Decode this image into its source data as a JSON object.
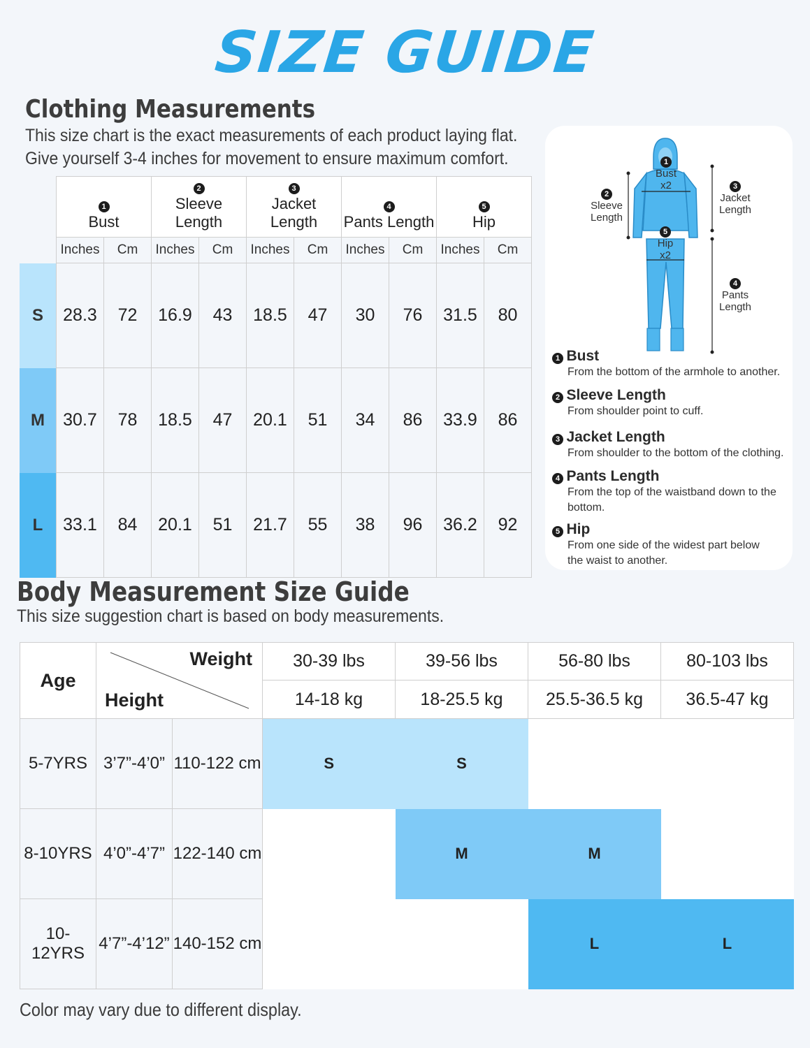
{
  "title": "SIZE GUIDE",
  "clothing": {
    "title": "Clothing Measurements",
    "desc1": "This size chart is the exact measurements of each product laying flat.",
    "desc2": "Give yourself 3-4 inches for movement to ensure maximum comfort.",
    "columns": [
      {
        "num": "1",
        "label": "Bust"
      },
      {
        "num": "2",
        "label": "Sleeve Length"
      },
      {
        "num": "3",
        "label": "Jacket Length"
      },
      {
        "num": "4",
        "label": "Pants Length"
      },
      {
        "num": "5",
        "label": "Hip"
      }
    ],
    "unit_in": "Inches",
    "unit_cm": "Cm",
    "rows": [
      {
        "size": "S",
        "values": [
          "28.3",
          "72",
          "16.9",
          "43",
          "18.5",
          "47",
          "30",
          "76",
          "31.5",
          "80"
        ]
      },
      {
        "size": "M",
        "values": [
          "30.7",
          "78",
          "18.5",
          "47",
          "20.1",
          "51",
          "34",
          "86",
          "33.9",
          "86"
        ]
      },
      {
        "size": "L",
        "values": [
          "33.1",
          "84",
          "20.1",
          "51",
          "21.7",
          "55",
          "38",
          "96",
          "36.2",
          "92"
        ]
      }
    ],
    "size_colors": [
      "#b9e4fc",
      "#7fcaf7",
      "#4fb9f2"
    ]
  },
  "diagram": {
    "bust_label": "Bust",
    "x2": "x2",
    "hip_label": "Hip",
    "sleeve_label": "Sleeve",
    "length_word": "Length",
    "jacket_label": "Jacket",
    "pants_label": "Pants",
    "figure_color": "#4fb6ee",
    "definitions": [
      {
        "num": "1",
        "title": "Bust",
        "desc": "From the bottom of the armhole to another."
      },
      {
        "num": "2",
        "title": "Sleeve Length",
        "desc": "From shoulder point to cuff."
      },
      {
        "num": "3",
        "title": "Jacket Length",
        "desc": "From shoulder to the bottom of the clothing."
      },
      {
        "num": "4",
        "title": "Pants Length",
        "desc": "From the top of the waistband down to the bottom."
      },
      {
        "num": "5",
        "title": "Hip",
        "desc": "From one side of the widest part below the waist to another."
      }
    ]
  },
  "body": {
    "title": "Body Measurement Size Guide",
    "desc": "This size suggestion chart is based on body measurements.",
    "age_label": "Age",
    "weight_label": "Weight",
    "height_label": "Height",
    "weights_lbs": [
      "30-39 lbs",
      "39-56 lbs",
      "56-80 lbs",
      "80-103 lbs"
    ],
    "weights_kg": [
      "14-18 kg",
      "18-25.5 kg",
      "25.5-36.5 kg",
      "36.5-47 kg"
    ],
    "rows": [
      {
        "age": "5-7YRS",
        "height_ft": "3’7”-4’0”",
        "height_cm": "110-122 cm",
        "cells": [
          "S",
          "S",
          "",
          ""
        ]
      },
      {
        "age": "8-10YRS",
        "height_ft": "4’0”-4’7”",
        "height_cm": "122-140 cm",
        "cells": [
          "",
          "M",
          "M",
          ""
        ]
      },
      {
        "age": "10-12YRS",
        "height_ft": "4’7”-4’12”",
        "height_cm": "140-152 cm",
        "cells": [
          "",
          "",
          "L",
          "L"
        ]
      }
    ]
  },
  "footer": "Color may vary due to different display."
}
